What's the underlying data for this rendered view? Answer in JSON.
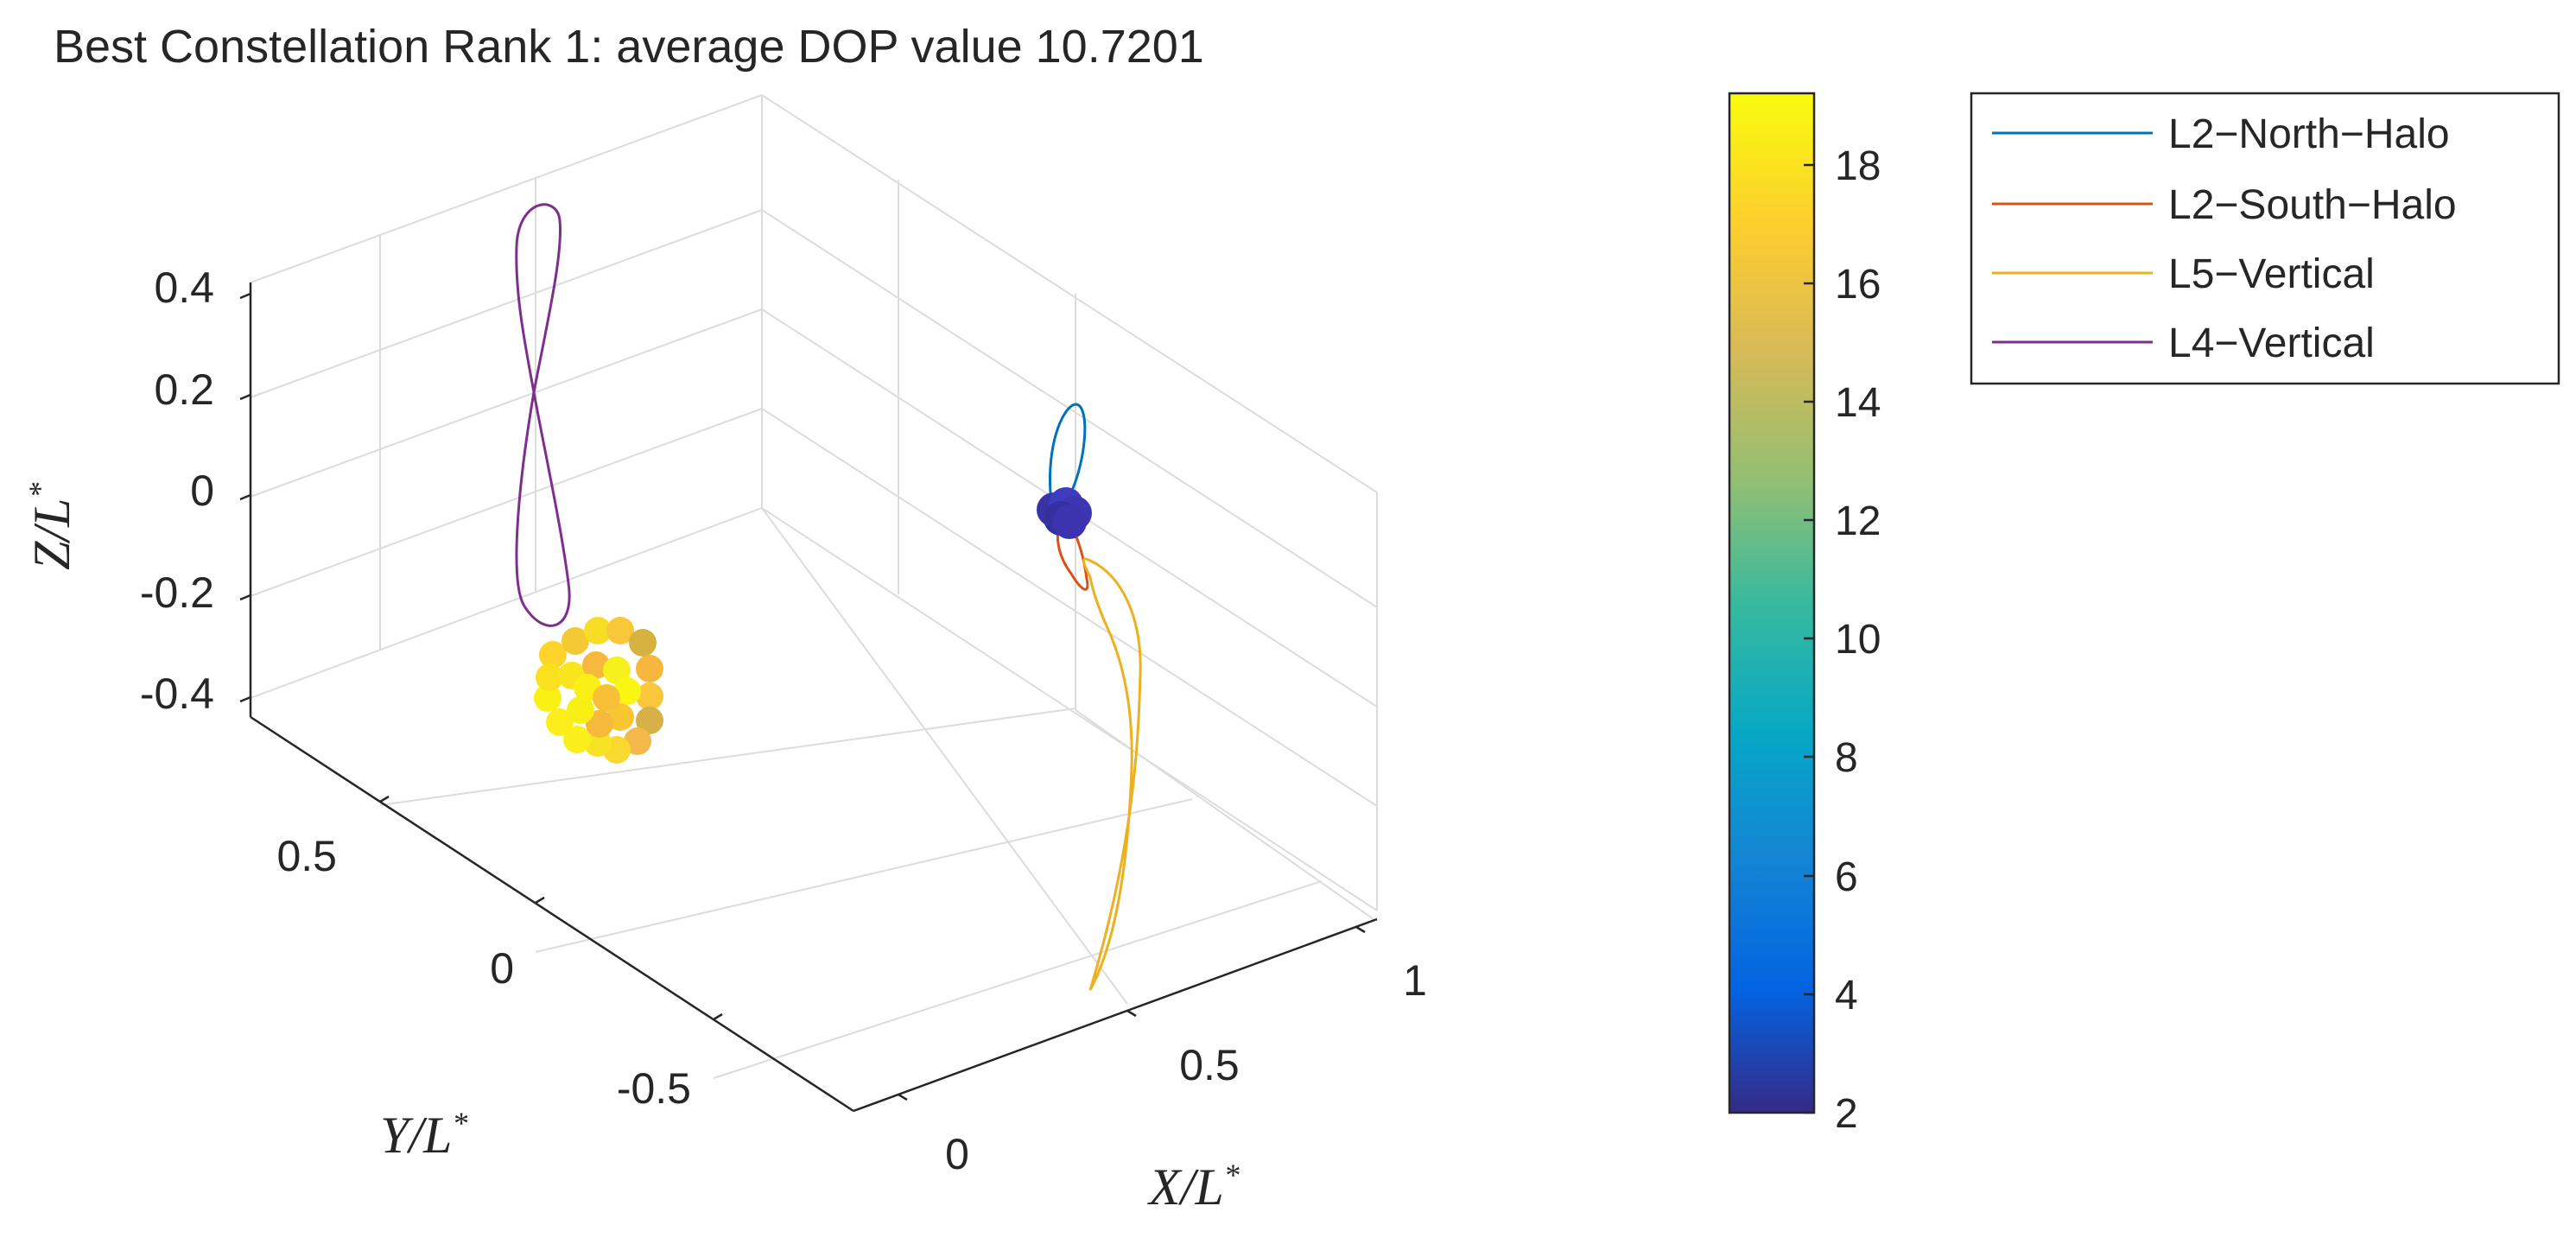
{
  "chart_data": {
    "type": "scatter3d",
    "title": "Best Constellation Rank 1: average DOP value 10.7201",
    "xlabel": "X/L*",
    "ylabel": "Y/L*",
    "zlabel": "Z/L*",
    "label_parts": {
      "x": "X/L",
      "y": "Y/L",
      "z": "Z/L",
      "sup": "*"
    },
    "x_ticks": [
      "0",
      "0.5",
      "1"
    ],
    "y_ticks": [
      "0.5",
      "0",
      "-0.5"
    ],
    "z_ticks": [
      "0.4",
      "0.2",
      "0",
      "-0.2",
      "-0.4"
    ],
    "grid": true,
    "colorbar": {
      "min": 2,
      "max": 19.2,
      "ticks": [
        "2",
        "4",
        "6",
        "8",
        "10",
        "12",
        "14",
        "16",
        "18"
      ],
      "colormap": "parula"
    },
    "legend": {
      "placement": "top-right, outside axes",
      "entries": [
        {
          "label": "L2−North−Halo",
          "color": "#0072BD"
        },
        {
          "label": "L2−South−Halo",
          "color": "#D95319"
        },
        {
          "label": "L5−Vertical",
          "color": "#EDB120"
        },
        {
          "label": "L4−Vertical",
          "color": "#7E2F8E"
        }
      ]
    },
    "series": [
      {
        "name": "L2-North-Halo",
        "x": 1.15,
        "y": 0.0,
        "z": [
          0.0,
          0.19
        ],
        "shape": "halo loop above point cluster"
      },
      {
        "name": "L2-South-Halo",
        "x": 1.15,
        "y": 0.0,
        "z": [
          -0.19,
          0.0
        ],
        "shape": "halo loop below point cluster"
      },
      {
        "name": "L5-Vertical",
        "x": 0.5,
        "y": -0.87,
        "z": [
          -0.4,
          0.0
        ],
        "shape": "figure-eight, viewed edge-on"
      },
      {
        "name": "L4-Vertical",
        "x": 0.5,
        "y": 0.87,
        "z": [
          -0.25,
          0.45
        ],
        "shape": "figure-eight"
      }
    ],
    "scatter_groups": [
      {
        "name": "L2 point cluster",
        "color_value_range": [
          2.5,
          3.5
        ]
      },
      {
        "name": "L4 point cluster",
        "color_value_range": [
          16,
          19
        ]
      }
    ]
  }
}
